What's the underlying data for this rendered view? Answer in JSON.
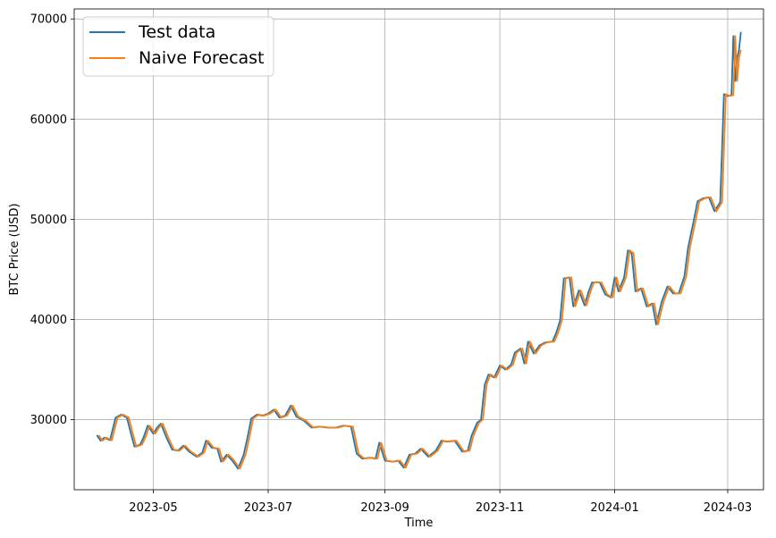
{
  "chart_data": {
    "type": "line",
    "xlabel": "Time",
    "ylabel": "BTC Price (USD)",
    "xlim": [
      "2023-03-20",
      "2024-03-20"
    ],
    "ylim": [
      23000,
      71000
    ],
    "grid": true,
    "legend_position": "top-left",
    "x_ticks": [
      "2023-05-01",
      "2023-07-01",
      "2023-09-01",
      "2023-11-01",
      "2024-01-01",
      "2024-03-01"
    ],
    "x_tick_labels": [
      "2023-05",
      "2023-07",
      "2023-09",
      "2023-11",
      "2024-01",
      "2024-03"
    ],
    "y_ticks": [
      30000,
      40000,
      50000,
      60000,
      70000
    ],
    "y_tick_labels": [
      "30000",
      "40000",
      "50000",
      "60000",
      "70000"
    ],
    "series": [
      {
        "name": "Test data",
        "color": "#1f77b4",
        "points": [
          [
            "2023-04-01",
            28450
          ],
          [
            "2023-04-03",
            27900
          ],
          [
            "2023-04-05",
            28200
          ],
          [
            "2023-04-08",
            27950
          ],
          [
            "2023-04-11",
            30200
          ],
          [
            "2023-04-14",
            30500
          ],
          [
            "2023-04-17",
            30200
          ],
          [
            "2023-04-19",
            28700
          ],
          [
            "2023-04-21",
            27300
          ],
          [
            "2023-04-24",
            27500
          ],
          [
            "2023-04-26",
            28300
          ],
          [
            "2023-04-28",
            29400
          ],
          [
            "2023-05-01",
            28600
          ],
          [
            "2023-05-03",
            29200
          ],
          [
            "2023-05-05",
            29600
          ],
          [
            "2023-05-08",
            28200
          ],
          [
            "2023-05-11",
            27000
          ],
          [
            "2023-05-14",
            26900
          ],
          [
            "2023-05-17",
            27400
          ],
          [
            "2023-05-20",
            26800
          ],
          [
            "2023-05-24",
            26300
          ],
          [
            "2023-05-27",
            26700
          ],
          [
            "2023-05-29",
            27900
          ],
          [
            "2023-06-01",
            27200
          ],
          [
            "2023-06-04",
            27100
          ],
          [
            "2023-06-06",
            25800
          ],
          [
            "2023-06-09",
            26500
          ],
          [
            "2023-06-12",
            25900
          ],
          [
            "2023-06-15",
            25100
          ],
          [
            "2023-06-18",
            26500
          ],
          [
            "2023-06-20",
            28200
          ],
          [
            "2023-06-22",
            30100
          ],
          [
            "2023-06-25",
            30500
          ],
          [
            "2023-06-28",
            30400
          ],
          [
            "2023-07-01",
            30600
          ],
          [
            "2023-07-04",
            31000
          ],
          [
            "2023-07-07",
            30200
          ],
          [
            "2023-07-10",
            30400
          ],
          [
            "2023-07-13",
            31400
          ],
          [
            "2023-07-16",
            30300
          ],
          [
            "2023-07-20",
            29900
          ],
          [
            "2023-07-24",
            29200
          ],
          [
            "2023-07-28",
            29300
          ],
          [
            "2023-08-02",
            29200
          ],
          [
            "2023-08-06",
            29200
          ],
          [
            "2023-08-10",
            29400
          ],
          [
            "2023-08-14",
            29300
          ],
          [
            "2023-08-17",
            26600
          ],
          [
            "2023-08-20",
            26100
          ],
          [
            "2023-08-24",
            26200
          ],
          [
            "2023-08-27",
            26100
          ],
          [
            "2023-08-29",
            27700
          ],
          [
            "2023-09-01",
            25900
          ],
          [
            "2023-09-05",
            25800
          ],
          [
            "2023-09-08",
            25900
          ],
          [
            "2023-09-11",
            25200
          ],
          [
            "2023-09-14",
            26500
          ],
          [
            "2023-09-17",
            26600
          ],
          [
            "2023-09-20",
            27100
          ],
          [
            "2023-09-24",
            26300
          ],
          [
            "2023-09-28",
            26900
          ],
          [
            "2023-10-01",
            27900
          ],
          [
            "2023-10-04",
            27800
          ],
          [
            "2023-10-08",
            27900
          ],
          [
            "2023-10-12",
            26800
          ],
          [
            "2023-10-15",
            26900
          ],
          [
            "2023-10-17",
            28400
          ],
          [
            "2023-10-20",
            29700
          ],
          [
            "2023-10-22",
            30000
          ],
          [
            "2023-10-24",
            33500
          ],
          [
            "2023-10-26",
            34500
          ],
          [
            "2023-10-29",
            34200
          ],
          [
            "2023-11-01",
            35400
          ],
          [
            "2023-11-04",
            35000
          ],
          [
            "2023-11-07",
            35500
          ],
          [
            "2023-11-09",
            36700
          ],
          [
            "2023-11-12",
            37100
          ],
          [
            "2023-11-14",
            35600
          ],
          [
            "2023-11-16",
            37800
          ],
          [
            "2023-11-19",
            36600
          ],
          [
            "2023-11-22",
            37400
          ],
          [
            "2023-11-25",
            37700
          ],
          [
            "2023-11-29",
            37800
          ],
          [
            "2023-12-01",
            38700
          ],
          [
            "2023-12-03",
            39900
          ],
          [
            "2023-12-05",
            44100
          ],
          [
            "2023-12-08",
            44200
          ],
          [
            "2023-12-10",
            41300
          ],
          [
            "2023-12-13",
            42900
          ],
          [
            "2023-12-16",
            41400
          ],
          [
            "2023-12-18",
            42700
          ],
          [
            "2023-12-20",
            43700
          ],
          [
            "2023-12-24",
            43700
          ],
          [
            "2023-12-27",
            42500
          ],
          [
            "2023-12-30",
            42200
          ],
          [
            "2024-01-01",
            44200
          ],
          [
            "2024-01-03",
            42800
          ],
          [
            "2024-01-06",
            44200
          ],
          [
            "2024-01-08",
            46900
          ],
          [
            "2024-01-10",
            46600
          ],
          [
            "2024-01-12",
            42800
          ],
          [
            "2024-01-15",
            43100
          ],
          [
            "2024-01-18",
            41300
          ],
          [
            "2024-01-21",
            41600
          ],
          [
            "2024-01-23",
            39500
          ],
          [
            "2024-01-26",
            41800
          ],
          [
            "2024-01-29",
            43300
          ],
          [
            "2024-02-01",
            42600
          ],
          [
            "2024-02-04",
            42600
          ],
          [
            "2024-02-07",
            44300
          ],
          [
            "2024-02-09",
            47200
          ],
          [
            "2024-02-12",
            49900
          ],
          [
            "2024-02-14",
            51800
          ],
          [
            "2024-02-17",
            52100
          ],
          [
            "2024-02-20",
            52200
          ],
          [
            "2024-02-23",
            50800
          ],
          [
            "2024-02-26",
            51700
          ],
          [
            "2024-02-27",
            57000
          ],
          [
            "2024-02-28",
            62500
          ],
          [
            "2024-03-01",
            62300
          ],
          [
            "2024-03-03",
            62400
          ],
          [
            "2024-03-04",
            68300
          ],
          [
            "2024-03-05",
            63800
          ],
          [
            "2024-03-06",
            66100
          ],
          [
            "2024-03-07",
            66900
          ],
          [
            "2024-03-08",
            68700
          ]
        ]
      },
      {
        "name": "Naive Forecast",
        "color": "#ff7f0e",
        "points": [
          [
            "2023-04-02",
            28450
          ],
          [
            "2023-04-04",
            27900
          ],
          [
            "2023-04-06",
            28200
          ],
          [
            "2023-04-09",
            27950
          ],
          [
            "2023-04-12",
            30200
          ],
          [
            "2023-04-15",
            30500
          ],
          [
            "2023-04-18",
            30200
          ],
          [
            "2023-04-20",
            28700
          ],
          [
            "2023-04-22",
            27300
          ],
          [
            "2023-04-25",
            27500
          ],
          [
            "2023-04-27",
            28300
          ],
          [
            "2023-04-29",
            29400
          ],
          [
            "2023-05-02",
            28600
          ],
          [
            "2023-05-04",
            29200
          ],
          [
            "2023-05-06",
            29600
          ],
          [
            "2023-05-09",
            28200
          ],
          [
            "2023-05-12",
            27000
          ],
          [
            "2023-05-15",
            26900
          ],
          [
            "2023-05-18",
            27400
          ],
          [
            "2023-05-21",
            26800
          ],
          [
            "2023-05-25",
            26300
          ],
          [
            "2023-05-28",
            26700
          ],
          [
            "2023-05-30",
            27900
          ],
          [
            "2023-06-02",
            27200
          ],
          [
            "2023-06-05",
            27100
          ],
          [
            "2023-06-07",
            25800
          ],
          [
            "2023-06-10",
            26500
          ],
          [
            "2023-06-13",
            25900
          ],
          [
            "2023-06-16",
            25100
          ],
          [
            "2023-06-19",
            26500
          ],
          [
            "2023-06-21",
            28200
          ],
          [
            "2023-06-23",
            30100
          ],
          [
            "2023-06-26",
            30500
          ],
          [
            "2023-06-29",
            30400
          ],
          [
            "2023-07-02",
            30600
          ],
          [
            "2023-07-05",
            31000
          ],
          [
            "2023-07-08",
            30200
          ],
          [
            "2023-07-11",
            30400
          ],
          [
            "2023-07-14",
            31400
          ],
          [
            "2023-07-17",
            30300
          ],
          [
            "2023-07-21",
            29900
          ],
          [
            "2023-07-25",
            29200
          ],
          [
            "2023-07-29",
            29300
          ],
          [
            "2023-08-03",
            29200
          ],
          [
            "2023-08-07",
            29200
          ],
          [
            "2023-08-11",
            29400
          ],
          [
            "2023-08-15",
            29300
          ],
          [
            "2023-08-18",
            26600
          ],
          [
            "2023-08-21",
            26100
          ],
          [
            "2023-08-25",
            26200
          ],
          [
            "2023-08-28",
            26100
          ],
          [
            "2023-08-30",
            27700
          ],
          [
            "2023-09-02",
            25900
          ],
          [
            "2023-09-06",
            25800
          ],
          [
            "2023-09-09",
            25900
          ],
          [
            "2023-09-12",
            25200
          ],
          [
            "2023-09-15",
            26500
          ],
          [
            "2023-09-18",
            26600
          ],
          [
            "2023-09-21",
            27100
          ],
          [
            "2023-09-25",
            26300
          ],
          [
            "2023-09-29",
            26900
          ],
          [
            "2023-10-02",
            27900
          ],
          [
            "2023-10-05",
            27800
          ],
          [
            "2023-10-09",
            27900
          ],
          [
            "2023-10-13",
            26800
          ],
          [
            "2023-10-16",
            26900
          ],
          [
            "2023-10-18",
            28400
          ],
          [
            "2023-10-21",
            29700
          ],
          [
            "2023-10-23",
            30000
          ],
          [
            "2023-10-25",
            33500
          ],
          [
            "2023-10-27",
            34500
          ],
          [
            "2023-10-30",
            34200
          ],
          [
            "2023-11-02",
            35400
          ],
          [
            "2023-11-05",
            35000
          ],
          [
            "2023-11-08",
            35500
          ],
          [
            "2023-11-10",
            36700
          ],
          [
            "2023-11-13",
            37100
          ],
          [
            "2023-11-15",
            35600
          ],
          [
            "2023-11-17",
            37800
          ],
          [
            "2023-11-20",
            36600
          ],
          [
            "2023-11-23",
            37400
          ],
          [
            "2023-11-26",
            37700
          ],
          [
            "2023-11-30",
            37800
          ],
          [
            "2023-12-02",
            38700
          ],
          [
            "2023-12-04",
            39900
          ],
          [
            "2023-12-06",
            44100
          ],
          [
            "2023-12-09",
            44200
          ],
          [
            "2023-12-11",
            41300
          ],
          [
            "2023-12-14",
            42900
          ],
          [
            "2023-12-17",
            41400
          ],
          [
            "2023-12-19",
            42700
          ],
          [
            "2023-12-21",
            43700
          ],
          [
            "2023-12-25",
            43700
          ],
          [
            "2023-12-28",
            42500
          ],
          [
            "2023-12-31",
            42200
          ],
          [
            "2024-01-02",
            44200
          ],
          [
            "2024-01-04",
            42800
          ],
          [
            "2024-01-07",
            44200
          ],
          [
            "2024-01-09",
            46900
          ],
          [
            "2024-01-11",
            46600
          ],
          [
            "2024-01-13",
            42800
          ],
          [
            "2024-01-16",
            43100
          ],
          [
            "2024-01-19",
            41300
          ],
          [
            "2024-01-22",
            41600
          ],
          [
            "2024-01-24",
            39500
          ],
          [
            "2024-01-27",
            41800
          ],
          [
            "2024-01-30",
            43300
          ],
          [
            "2024-02-02",
            42600
          ],
          [
            "2024-02-05",
            42600
          ],
          [
            "2024-02-08",
            44300
          ],
          [
            "2024-02-10",
            47200
          ],
          [
            "2024-02-13",
            49900
          ],
          [
            "2024-02-15",
            51800
          ],
          [
            "2024-02-18",
            52100
          ],
          [
            "2024-02-21",
            52200
          ],
          [
            "2024-02-24",
            50800
          ],
          [
            "2024-02-27",
            51700
          ],
          [
            "2024-02-28",
            57000
          ],
          [
            "2024-02-29",
            62500
          ],
          [
            "2024-03-02",
            62300
          ],
          [
            "2024-03-04",
            62400
          ],
          [
            "2024-03-05",
            68300
          ],
          [
            "2024-03-06",
            63800
          ],
          [
            "2024-03-07",
            66100
          ],
          [
            "2024-03-08",
            66900
          ]
        ]
      }
    ]
  }
}
